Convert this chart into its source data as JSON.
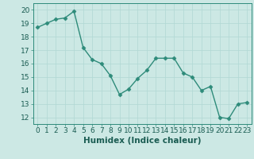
{
  "x": [
    0,
    1,
    2,
    3,
    4,
    5,
    6,
    7,
    8,
    9,
    10,
    11,
    12,
    13,
    14,
    15,
    16,
    17,
    18,
    19,
    20,
    21,
    22,
    23
  ],
  "y": [
    18.7,
    19.0,
    19.3,
    19.4,
    19.9,
    17.2,
    16.3,
    16.0,
    15.1,
    13.7,
    14.1,
    14.9,
    15.5,
    16.4,
    16.4,
    16.4,
    15.3,
    15.0,
    14.0,
    14.3,
    12.0,
    11.9,
    13.0,
    13.1
  ],
  "line_color": "#2e8b7a",
  "marker": "D",
  "marker_size": 2.5,
  "bg_color": "#cce8e4",
  "grid_color": "#b0d8d4",
  "xlabel": "Humidex (Indice chaleur)",
  "xlim": [
    -0.5,
    23.5
  ],
  "ylim": [
    11.5,
    20.5
  ],
  "yticks": [
    12,
    13,
    14,
    15,
    16,
    17,
    18,
    19,
    20
  ],
  "xticks": [
    0,
    1,
    2,
    3,
    4,
    5,
    6,
    7,
    8,
    9,
    10,
    11,
    12,
    13,
    14,
    15,
    16,
    17,
    18,
    19,
    20,
    21,
    22,
    23
  ],
  "tick_color": "#2e8b7a",
  "label_color": "#1a5c52",
  "font_size": 6.5,
  "xlabel_fontsize": 7.5,
  "linewidth": 1.0
}
